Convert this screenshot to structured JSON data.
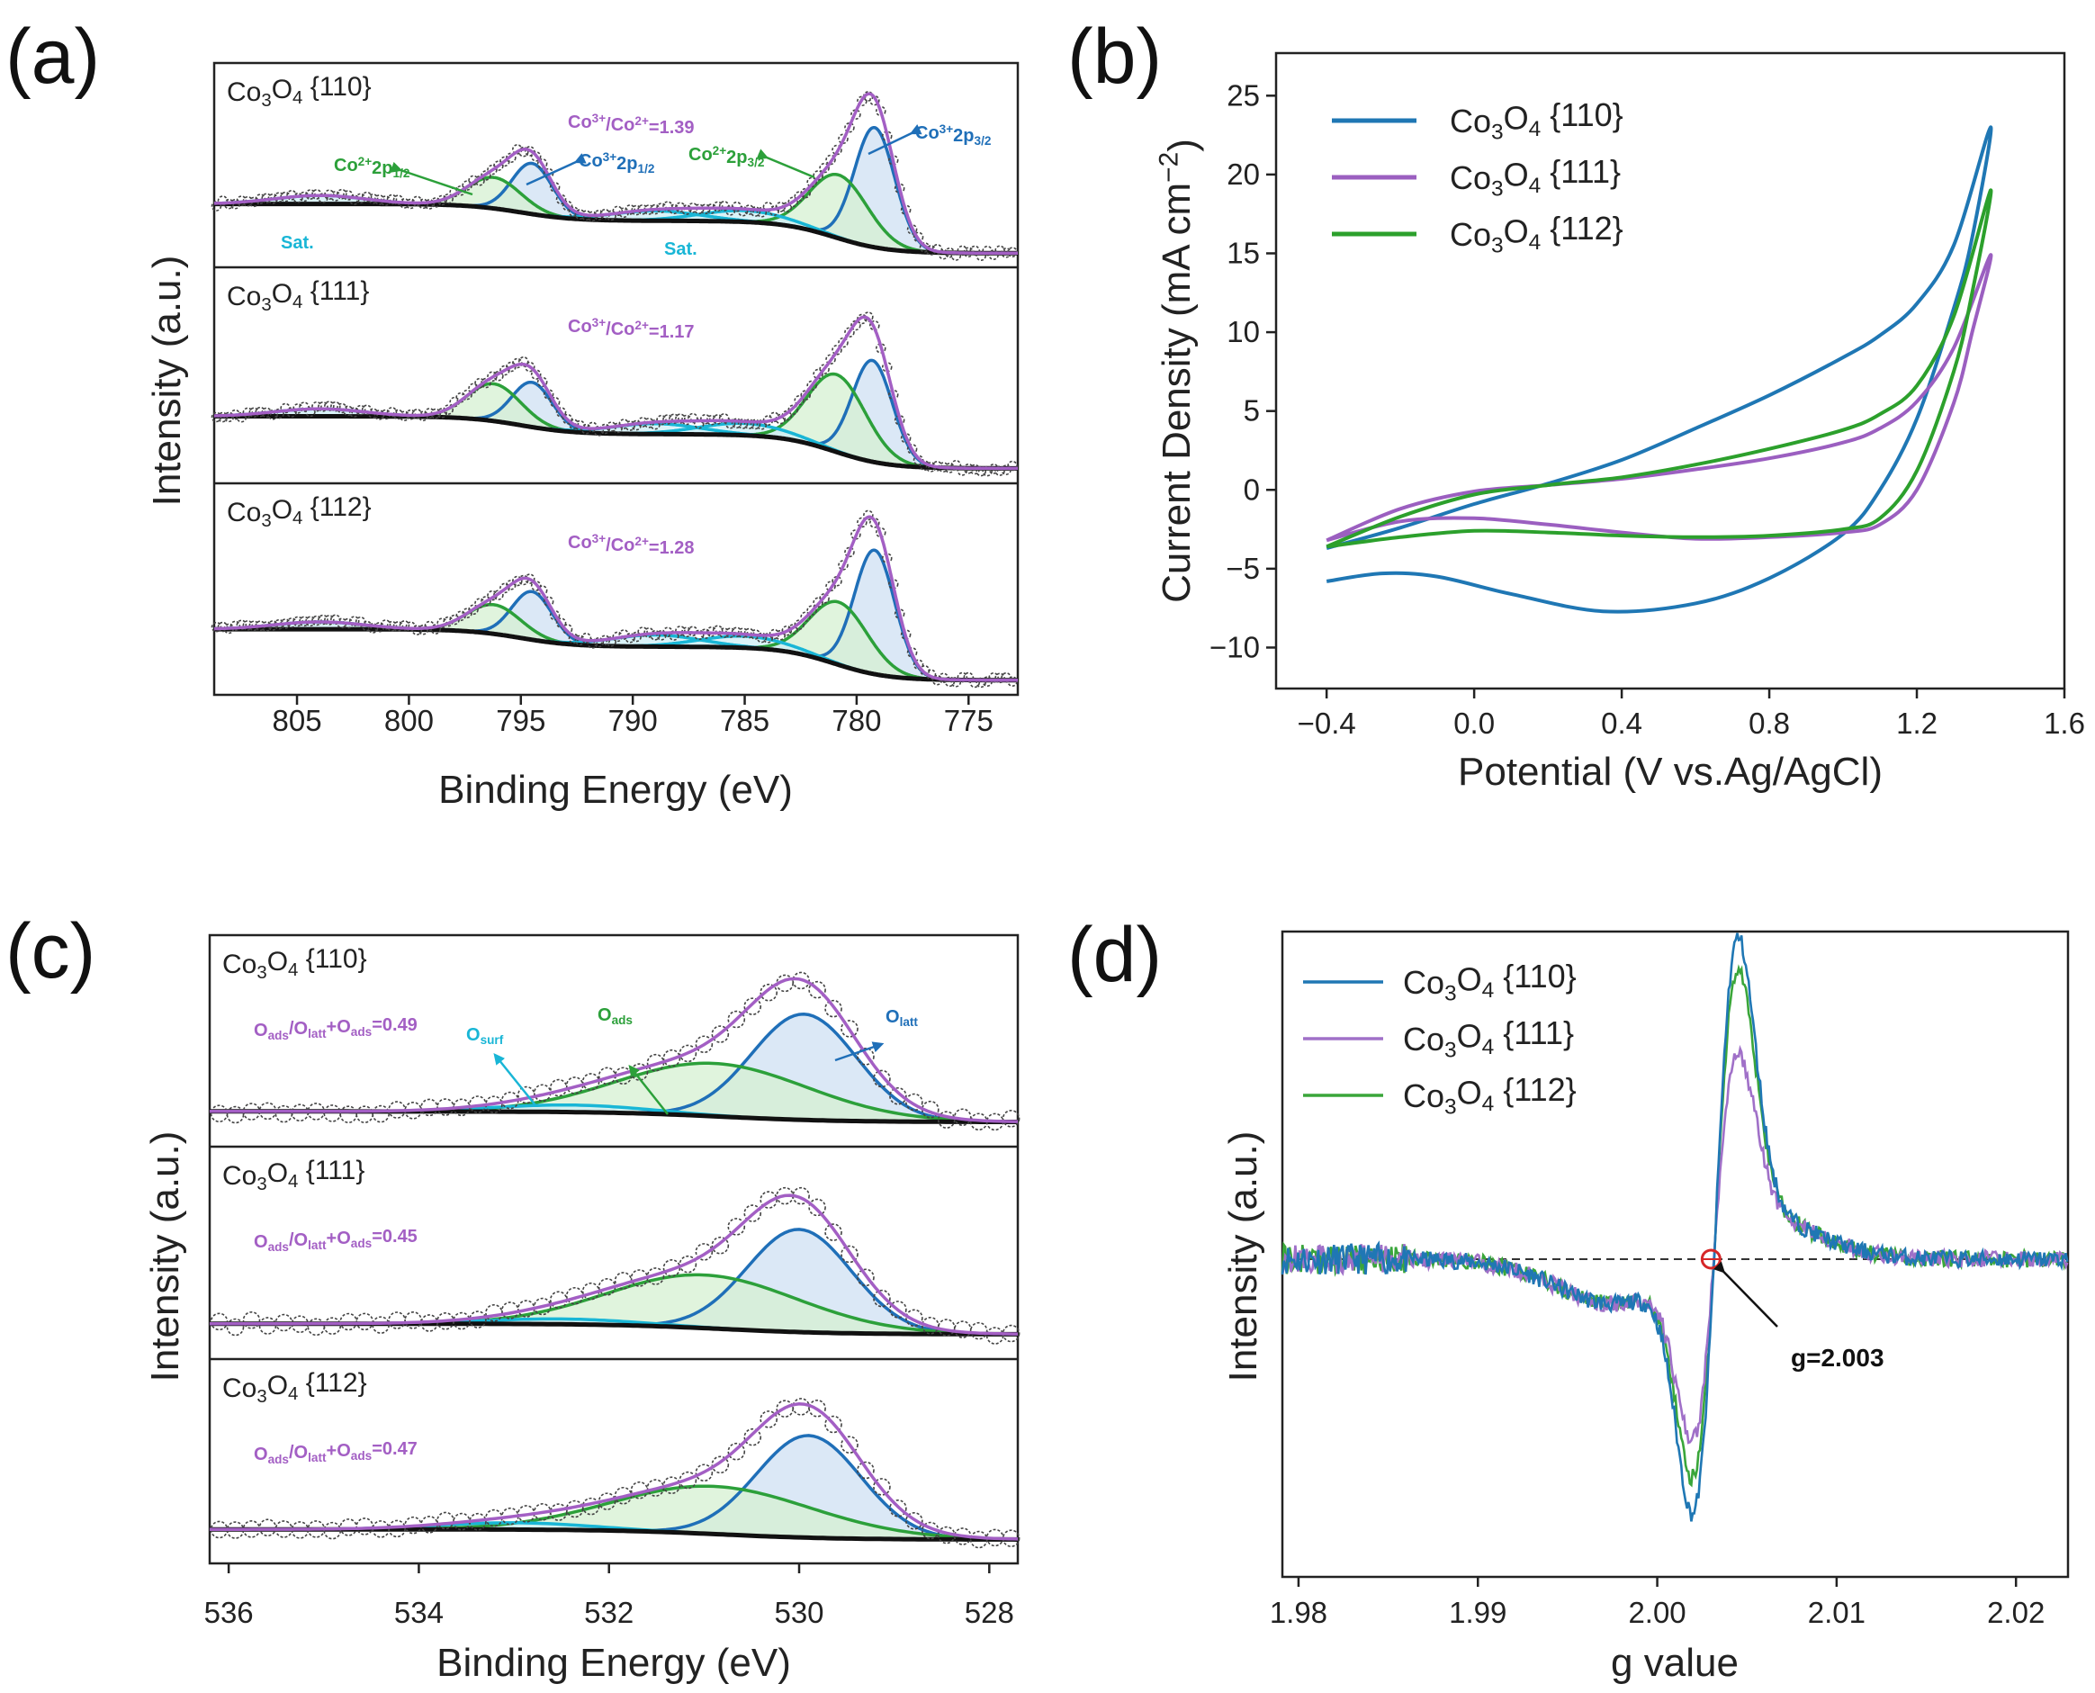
{
  "panel_labels": [
    "(a)",
    "(b)",
    "(c)",
    "(d)"
  ],
  "colors": {
    "envelope": "#a35fc4",
    "co3": "#1f6fb8",
    "co2": "#2ca03a",
    "sat": "#19b6d6",
    "baseline": "#111111",
    "marker": "#d62728"
  },
  "chart_data": [
    {
      "panel": "a",
      "type": "line",
      "xlabel": "Binding Energy (eV)",
      "ylabel": "Intensity (a.u.)",
      "xlim": [
        808.7,
        772.8
      ],
      "x_reversed": true,
      "xticks": [
        805,
        800,
        795,
        790,
        785,
        780,
        775
      ],
      "xtick_labels": [
        "805",
        "800",
        "795",
        "790",
        "785",
        "780",
        "775"
      ],
      "annotations": {
        "co2_2p12": [
          "Co",
          "^2+",
          "2p",
          "_1/2"
        ],
        "co3_2p12": [
          "Co",
          "^3+",
          "2p",
          "_1/2"
        ],
        "co2_2p32": [
          "Co",
          "^2+",
          "2p",
          "_3/2"
        ],
        "co3_2p32": [
          "Co",
          "^3+",
          "2p",
          "_3/2"
        ],
        "sat": "Sat."
      },
      "subpanels": [
        {
          "label": [
            "Co",
            "_3",
            "O",
            "_4",
            " {110}"
          ],
          "ratio": [
            "Co",
            "^3+",
            "/Co",
            "^2+",
            "=1.39"
          ],
          "components": [
            {
              "name": "Co3+ 2p3/2",
              "center": 779.2,
              "amp": 0.85,
              "sigma": 0.9,
              "kind": "co3"
            },
            {
              "name": "Co2+ 2p3/2",
              "center": 780.8,
              "amp": 0.45,
              "sigma": 1.3,
              "kind": "co2"
            },
            {
              "name": "Co3+ 2p1/2",
              "center": 794.5,
              "amp": 0.36,
              "sigma": 0.9,
              "kind": "co3"
            },
            {
              "name": "Co2+ 2p1/2",
              "center": 796.2,
              "amp": 0.22,
              "sigma": 1.2,
              "kind": "co2"
            },
            {
              "name": "Sat.",
              "center": 804.0,
              "amp": 0.06,
              "sigma": 2.0,
              "kind": "sat"
            },
            {
              "name": "Sat.",
              "center": 789.0,
              "amp": 0.07,
              "sigma": 2.0,
              "kind": "sat"
            },
            {
              "name": "Sat.",
              "center": 785.0,
              "amp": 0.08,
              "sigma": 2.0,
              "kind": "sat"
            }
          ]
        },
        {
          "label": [
            "Co",
            "_3",
            "O",
            "_4",
            " {111}"
          ],
          "ratio": [
            "Co",
            "^3+",
            "/Co",
            "^2+",
            "=1.17"
          ],
          "components": [
            {
              "center": 779.3,
              "amp": 0.68,
              "sigma": 0.9,
              "kind": "co3"
            },
            {
              "center": 780.9,
              "amp": 0.52,
              "sigma": 1.3,
              "kind": "co2"
            },
            {
              "center": 794.5,
              "amp": 0.3,
              "sigma": 0.9,
              "kind": "co3"
            },
            {
              "center": 796.2,
              "amp": 0.25,
              "sigma": 1.2,
              "kind": "co2"
            },
            {
              "center": 804.0,
              "amp": 0.05,
              "sigma": 2.0,
              "kind": "sat"
            },
            {
              "center": 789.0,
              "amp": 0.07,
              "sigma": 2.0,
              "kind": "sat"
            },
            {
              "center": 785.0,
              "amp": 0.08,
              "sigma": 2.0,
              "kind": "sat"
            }
          ]
        },
        {
          "label": [
            "Co",
            "_3",
            "O",
            "_4",
            " {112}"
          ],
          "ratio": [
            "Co",
            "^3+",
            "/Co",
            "^2+",
            "=1.28"
          ],
          "components": [
            {
              "center": 779.2,
              "amp": 0.85,
              "sigma": 0.9,
              "kind": "co3"
            },
            {
              "center": 780.8,
              "amp": 0.43,
              "sigma": 1.3,
              "kind": "co2"
            },
            {
              "center": 794.5,
              "amp": 0.33,
              "sigma": 0.9,
              "kind": "co3"
            },
            {
              "center": 796.2,
              "amp": 0.2,
              "sigma": 1.2,
              "kind": "co2"
            },
            {
              "center": 804.0,
              "amp": 0.05,
              "sigma": 2.0,
              "kind": "sat"
            },
            {
              "center": 789.0,
              "amp": 0.08,
              "sigma": 2.0,
              "kind": "sat"
            },
            {
              "center": 785.0,
              "amp": 0.08,
              "sigma": 2.0,
              "kind": "sat"
            }
          ]
        }
      ]
    },
    {
      "panel": "b",
      "type": "line",
      "xlabel": "Potential (V vs.Ag/AgCl)",
      "ylabel": [
        "Current Density (mA cm",
        "^−2",
        ")"
      ],
      "xlim": [
        -0.537,
        1.6
      ],
      "ylim": [
        -12.6,
        27.7
      ],
      "xticks": [
        -0.4,
        0.0,
        0.4,
        0.8,
        1.2,
        1.6
      ],
      "xtick_labels": [
        "−0.4",
        "0.0",
        "0.4",
        "0.8",
        "1.2",
        "1.6"
      ],
      "yticks": [
        -10,
        -5,
        0,
        5,
        10,
        15,
        20,
        25
      ],
      "ytick_labels": [
        "−10",
        "−5",
        "0",
        "5",
        "10",
        "15",
        "20",
        "25"
      ],
      "legend_position": "top-left",
      "series": [
        {
          "name": [
            "Co",
            "_3",
            "O",
            "_4",
            " {110}"
          ],
          "color": "#1f77b4",
          "points": [
            [
              -0.4,
              -3.7
            ],
            [
              -0.2,
              -2.4
            ],
            [
              0.0,
              -0.9
            ],
            [
              0.2,
              0.4
            ],
            [
              0.4,
              1.9
            ],
            [
              0.6,
              3.9
            ],
            [
              0.8,
              6.0
            ],
            [
              1.0,
              8.4
            ],
            [
              1.1,
              9.8
            ],
            [
              1.2,
              11.8
            ],
            [
              1.3,
              15.5
            ],
            [
              1.4,
              23.0
            ],
            [
              1.35,
              16.0
            ],
            [
              1.3,
              11.5
            ],
            [
              1.2,
              4.5
            ],
            [
              1.1,
              0.0
            ],
            [
              1.0,
              -2.8
            ],
            [
              0.8,
              -5.6
            ],
            [
              0.6,
              -7.2
            ],
            [
              0.35,
              -7.7
            ],
            [
              0.1,
              -6.6
            ],
            [
              -0.1,
              -5.5
            ],
            [
              -0.25,
              -5.3
            ],
            [
              -0.4,
              -5.8
            ]
          ]
        },
        {
          "name": [
            "Co",
            "_3",
            "O",
            "_4",
            " {111}"
          ],
          "color": "#9b5fc0",
          "points": [
            [
              -0.4,
              -3.2
            ],
            [
              -0.2,
              -1.2
            ],
            [
              0.0,
              -0.1
            ],
            [
              0.2,
              0.3
            ],
            [
              0.4,
              0.7
            ],
            [
              0.6,
              1.3
            ],
            [
              0.8,
              2.0
            ],
            [
              1.0,
              3.0
            ],
            [
              1.1,
              3.9
            ],
            [
              1.2,
              5.6
            ],
            [
              1.3,
              9.0
            ],
            [
              1.4,
              14.9
            ],
            [
              1.35,
              10.0
            ],
            [
              1.3,
              5.5
            ],
            [
              1.2,
              0.0
            ],
            [
              1.1,
              -2.2
            ],
            [
              1.0,
              -2.7
            ],
            [
              0.8,
              -3.0
            ],
            [
              0.6,
              -3.1
            ],
            [
              0.4,
              -2.7
            ],
            [
              0.2,
              -2.2
            ],
            [
              0.0,
              -1.8
            ],
            [
              -0.2,
              -2.0
            ],
            [
              -0.4,
              -3.2
            ]
          ]
        },
        {
          "name": [
            "Co",
            "_3",
            "O",
            "_4",
            " {112}"
          ],
          "color": "#2ca02c",
          "points": [
            [
              -0.4,
              -3.6
            ],
            [
              -0.2,
              -1.7
            ],
            [
              0.0,
              -0.3
            ],
            [
              0.2,
              0.3
            ],
            [
              0.4,
              0.8
            ],
            [
              0.6,
              1.6
            ],
            [
              0.8,
              2.6
            ],
            [
              1.0,
              3.8
            ],
            [
              1.1,
              4.8
            ],
            [
              1.2,
              6.6
            ],
            [
              1.3,
              11.0
            ],
            [
              1.4,
              19.0
            ],
            [
              1.35,
              12.5
            ],
            [
              1.3,
              7.5
            ],
            [
              1.2,
              1.2
            ],
            [
              1.1,
              -1.8
            ],
            [
              1.0,
              -2.5
            ],
            [
              0.8,
              -2.9
            ],
            [
              0.6,
              -3.0
            ],
            [
              0.4,
              -2.9
            ],
            [
              0.2,
              -2.7
            ],
            [
              0.0,
              -2.6
            ],
            [
              -0.2,
              -3.0
            ],
            [
              -0.4,
              -3.6
            ]
          ]
        }
      ]
    },
    {
      "panel": "c",
      "type": "line",
      "xlabel": "Binding Energy (eV)",
      "ylabel": "Intensity (a.u.)",
      "xlim": [
        536.2,
        527.7
      ],
      "x_reversed": true,
      "xticks": [
        536,
        534,
        532,
        530,
        528
      ],
      "xtick_labels": [
        "536",
        "534",
        "532",
        "530",
        "528"
      ],
      "annotations": {
        "o_surf": [
          "O",
          "_surf"
        ],
        "o_ads": [
          "O",
          "_ads"
        ],
        "o_latt": [
          "O",
          "_latt"
        ]
      },
      "subpanels": [
        {
          "label": [
            "Co",
            "_3",
            "O",
            "_4",
            " {110}"
          ],
          "ratio": [
            "O",
            "_ads",
            "/O",
            "_latt",
            "+O",
            "_ads",
            "=0.49"
          ],
          "components": [
            {
              "name": "O_latt",
              "center": 529.95,
              "amp": 0.6,
              "sigma": 0.55,
              "kind": "co3"
            },
            {
              "name": "O_ads",
              "center": 530.9,
              "amp": 0.3,
              "sigma": 1.0,
              "kind": "co2"
            },
            {
              "name": "O_surf",
              "center": 532.4,
              "amp": 0.04,
              "sigma": 0.8,
              "kind": "sat"
            }
          ]
        },
        {
          "label": [
            "Co",
            "_3",
            "O",
            "_4",
            " {111}"
          ],
          "ratio": [
            "O",
            "_ads",
            "/O",
            "_latt",
            "+O",
            "_ads",
            "=0.45"
          ],
          "components": [
            {
              "center": 530.0,
              "amp": 0.58,
              "sigma": 0.55,
              "kind": "co3"
            },
            {
              "center": 531.0,
              "amp": 0.3,
              "sigma": 1.0,
              "kind": "co2"
            },
            {
              "center": 532.5,
              "amp": 0.03,
              "sigma": 0.8,
              "kind": "sat"
            }
          ]
        },
        {
          "label": [
            "Co",
            "_3",
            "O",
            "_4",
            " {112}"
          ],
          "ratio": [
            "O",
            "_ads",
            "/O",
            "_latt",
            "+O",
            "_ads",
            "=0.47"
          ],
          "components": [
            {
              "center": 529.9,
              "amp": 0.6,
              "sigma": 0.55,
              "kind": "co3"
            },
            {
              "center": 530.9,
              "amp": 0.28,
              "sigma": 1.05,
              "kind": "co2"
            },
            {
              "center": 533.0,
              "amp": 0.04,
              "sigma": 0.8,
              "kind": "sat"
            }
          ]
        }
      ]
    },
    {
      "panel": "d",
      "type": "line",
      "xlabel": "g value",
      "ylabel": "Intensity (a.u.)",
      "xlim": [
        1.9791,
        2.0229
      ],
      "ylim": [
        -1.135,
        1.17
      ],
      "xticks": [
        1.98,
        1.99,
        2.0,
        2.01,
        2.02
      ],
      "xtick_labels": [
        "1.98",
        "1.99",
        "2.00",
        "2.01",
        "2.02"
      ],
      "legend_position": "top-left",
      "reference_line": 0,
      "marker": {
        "g": 2.003,
        "label": "g=2.003"
      },
      "series": [
        {
          "name": [
            "Co",
            "_3",
            "O",
            "_4",
            " {110}"
          ],
          "color": "#1f77b4",
          "max": 1.0,
          "min": -0.94
        },
        {
          "name": [
            "Co",
            "_3",
            "O",
            "_4",
            " {111}"
          ],
          "color": "#a070c8",
          "max": 0.58,
          "min": -0.68
        },
        {
          "name": [
            "Co",
            "_3",
            "O",
            "_4",
            " {112}"
          ],
          "color": "#3aa63a",
          "max": 0.89,
          "min": -0.81
        }
      ]
    }
  ]
}
